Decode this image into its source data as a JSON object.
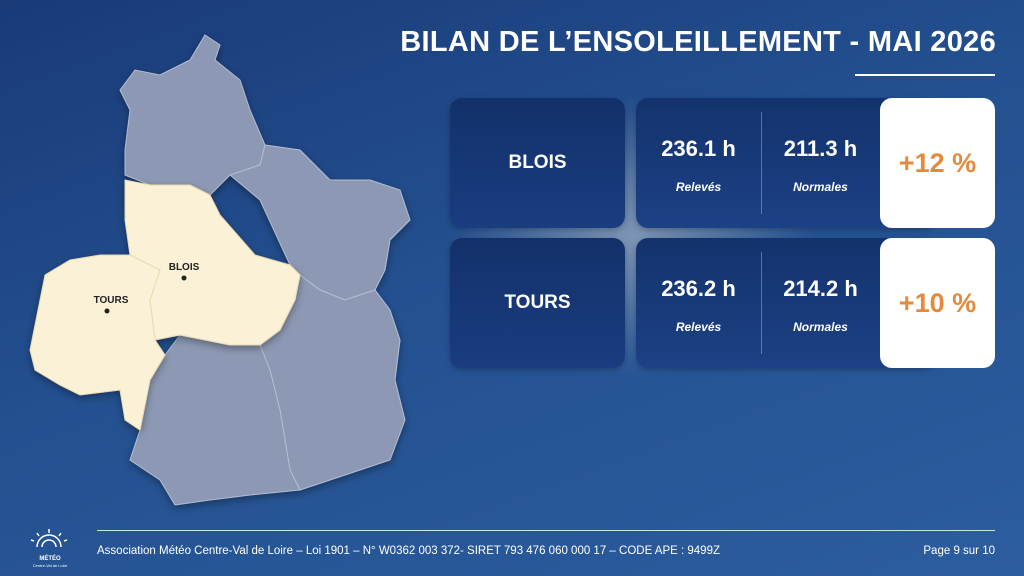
{
  "header": {
    "title": "BILAN DE L’ENSOLEILLEMENT - MAI 2026"
  },
  "map": {
    "labels": [
      "BLOIS",
      "TOURS"
    ]
  },
  "rows": [
    {
      "city": "BLOIS",
      "releves": "236.1 h",
      "releves_label": "Relevés",
      "normales": "211.3 h",
      "normales_label": "Normales",
      "difference": "+12 %"
    },
    {
      "city": "TOURS",
      "releves": "236.2 h",
      "releves_label": "Relevés",
      "normales": "214.2 h",
      "normales_label": "Normales",
      "difference": "+10 %"
    }
  ],
  "footer": {
    "logo_title": "MÉTÉO",
    "logo_subtitle": "Centre-Val de Loire",
    "text": "Association Météo Centre-Val de Loire – Loi 1901 – N° W0362 003 372- SIRET 793 476 060 000 17 – CODE APE : 9499Z",
    "page": "Page 9 sur 10"
  }
}
